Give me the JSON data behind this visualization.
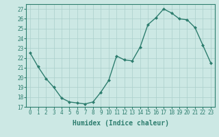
{
  "x": [
    0,
    1,
    2,
    3,
    4,
    5,
    6,
    7,
    8,
    9,
    10,
    11,
    12,
    13,
    14,
    15,
    16,
    17,
    18,
    19,
    20,
    21,
    22,
    23
  ],
  "y": [
    22.5,
    21.1,
    19.9,
    19.0,
    17.9,
    17.5,
    17.4,
    17.3,
    17.5,
    18.5,
    19.7,
    22.2,
    21.8,
    21.7,
    23.1,
    25.4,
    26.1,
    27.0,
    26.6,
    26.0,
    25.9,
    25.1,
    23.3,
    21.5
  ],
  "line_color": "#2d7d6e",
  "marker": "D",
  "markersize": 2.0,
  "linewidth": 1.0,
  "bg_color": "#cce8e4",
  "grid_color": "#aacfcb",
  "xlabel": "Humidex (Indice chaleur)",
  "xlim": [
    -0.5,
    23.5
  ],
  "ylim": [
    17,
    27.5
  ],
  "yticks": [
    17,
    18,
    19,
    20,
    21,
    22,
    23,
    24,
    25,
    26,
    27
  ],
  "xticks": [
    0,
    1,
    2,
    3,
    4,
    5,
    6,
    7,
    8,
    9,
    10,
    11,
    12,
    13,
    14,
    15,
    16,
    17,
    18,
    19,
    20,
    21,
    22,
    23
  ],
  "tick_fontsize": 5.5,
  "xlabel_fontsize": 7.0,
  "tick_color": "#2d7d6e",
  "spine_color": "#2d7d6e"
}
